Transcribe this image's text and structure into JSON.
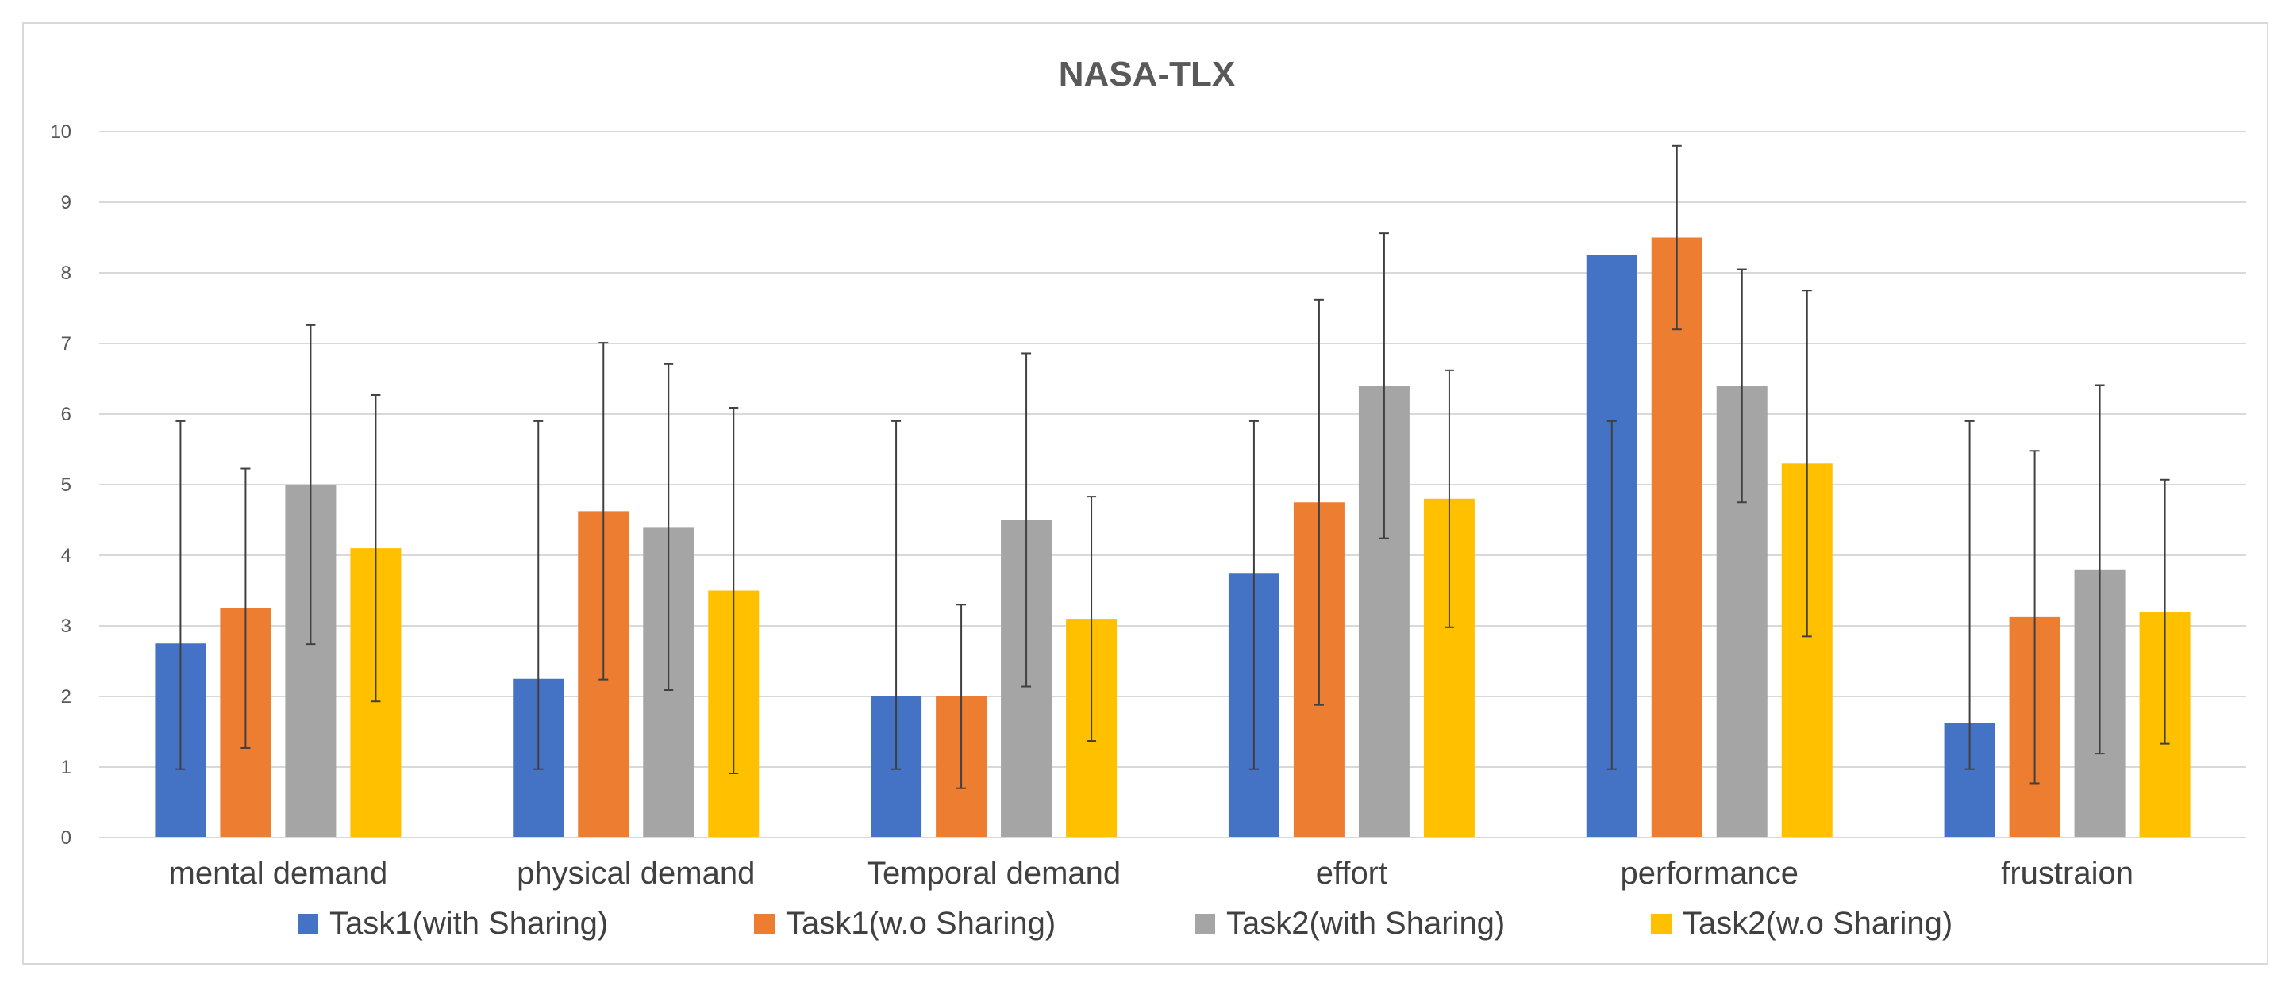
{
  "chart_data": {
    "type": "bar",
    "title": "NASA-TLX",
    "xlabel": "",
    "ylabel": "",
    "ylim": [
      0,
      10
    ],
    "yticks": [
      0,
      1,
      2,
      3,
      4,
      5,
      6,
      7,
      8,
      9,
      10
    ],
    "grid": true,
    "legend_position": "bottom",
    "categories": [
      "mental demand",
      "physical demand",
      "Temporal demand",
      "effort",
      "performance",
      "frustraion"
    ],
    "series": [
      {
        "name": "Task1(with Sharing)",
        "color": "#4472c4",
        "values": [
          2.75,
          2.25,
          2.0,
          3.75,
          8.25,
          1.625
        ],
        "error_low": [
          0.97,
          0.97,
          0.97,
          0.97,
          0.97,
          0.97
        ],
        "error_high": [
          5.9,
          5.9,
          5.9,
          5.9,
          5.9,
          5.9
        ]
      },
      {
        "name": "Task1(w.o Sharing)",
        "color": "#ed7d31",
        "values": [
          3.25,
          4.625,
          2.0,
          4.75,
          8.5,
          3.125
        ],
        "error_low": [
          1.27,
          2.24,
          0.7,
          1.88,
          7.2,
          0.77
        ],
        "error_high": [
          5.23,
          7.01,
          3.3,
          7.62,
          9.8,
          5.48
        ]
      },
      {
        "name": "Task2(with Sharing)",
        "color": "#a5a5a5",
        "values": [
          5.0,
          4.4,
          4.5,
          6.4,
          6.4,
          3.8
        ],
        "error_low": [
          2.74,
          2.09,
          2.14,
          4.24,
          4.75,
          1.19
        ],
        "error_high": [
          7.26,
          6.71,
          6.86,
          8.56,
          8.05,
          6.41
        ]
      },
      {
        "name": "Task2(w.o Sharing)",
        "color": "#ffc000",
        "values": [
          4.1,
          3.5,
          3.1,
          4.8,
          5.3,
          3.2
        ],
        "error_low": [
          1.93,
          0.91,
          1.37,
          2.98,
          2.85,
          1.33
        ],
        "error_high": [
          6.27,
          6.09,
          4.83,
          6.62,
          7.75,
          5.07
        ]
      }
    ]
  }
}
